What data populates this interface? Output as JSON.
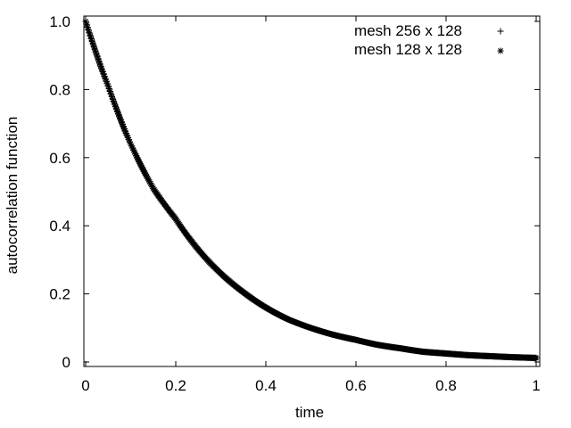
{
  "chart_data": {
    "type": "scatter",
    "xlabel": "time",
    "ylabel": "autocorrelation function",
    "xlim": [
      0,
      1
    ],
    "ylim": [
      0,
      1
    ],
    "x_ticks": [
      0,
      0.2,
      0.4,
      0.6,
      0.8,
      1
    ],
    "x_tick_labels": [
      "0",
      "0.2",
      "0.4",
      "0.6",
      "0.8",
      "1"
    ],
    "y_ticks": [
      0,
      0.2,
      0.4,
      0.6,
      0.8,
      1.0
    ],
    "y_tick_labels": [
      "0",
      "0.2",
      "0.4",
      "0.6",
      "0.8",
      "1.0"
    ],
    "grid": false,
    "legend_position": "top-right",
    "series": [
      {
        "name": "mesh 256 x 128",
        "marker": "plus",
        "color": "#000000",
        "x": [
          0.0,
          0.05,
          0.1,
          0.15,
          0.2,
          0.25,
          0.3,
          0.35,
          0.4,
          0.45,
          0.5,
          0.55,
          0.6,
          0.65,
          0.7,
          0.75,
          0.8,
          0.85,
          0.9,
          0.95,
          1.0
        ],
        "y": [
          1.0,
          0.81,
          0.64,
          0.51,
          0.42,
          0.33,
          0.26,
          0.205,
          0.16,
          0.125,
          0.1,
          0.08,
          0.065,
          0.05,
          0.04,
          0.03,
          0.025,
          0.02,
          0.017,
          0.014,
          0.012
        ]
      },
      {
        "name": "mesh 128 x 128",
        "marker": "star",
        "color": "#000000",
        "x": [
          0.0,
          0.05,
          0.1,
          0.15,
          0.2,
          0.25,
          0.3,
          0.35,
          0.4,
          0.45,
          0.5,
          0.55,
          0.6,
          0.65,
          0.7,
          0.75,
          0.8,
          0.85,
          0.9,
          0.95,
          1.0
        ],
        "y": [
          1.0,
          0.81,
          0.64,
          0.51,
          0.42,
          0.33,
          0.26,
          0.205,
          0.16,
          0.125,
          0.1,
          0.08,
          0.065,
          0.05,
          0.04,
          0.03,
          0.025,
          0.02,
          0.017,
          0.014,
          0.012
        ]
      }
    ]
  }
}
